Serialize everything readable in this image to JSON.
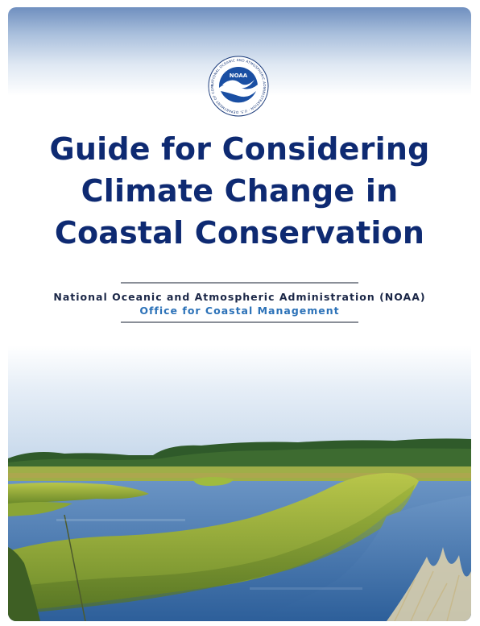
{
  "logo": {
    "text": "NOAA",
    "ring_text": "NATIONAL OCEANIC AND ATMOSPHERIC ADMINISTRATION · U.S. DEPARTMENT OF COMMERCE"
  },
  "title_lines": [
    "Guide for Considering",
    "Climate Change in",
    "Coastal Conservation"
  ],
  "agency": "National Oceanic and Atmospheric Administration (NOAA)",
  "office": "Office for Coastal Management",
  "colors": {
    "title": "#0e2a72",
    "office": "#2c72b8",
    "logo_blue": "#1a4fa3"
  },
  "photo": {
    "icon": "coastal-marsh-photo"
  }
}
